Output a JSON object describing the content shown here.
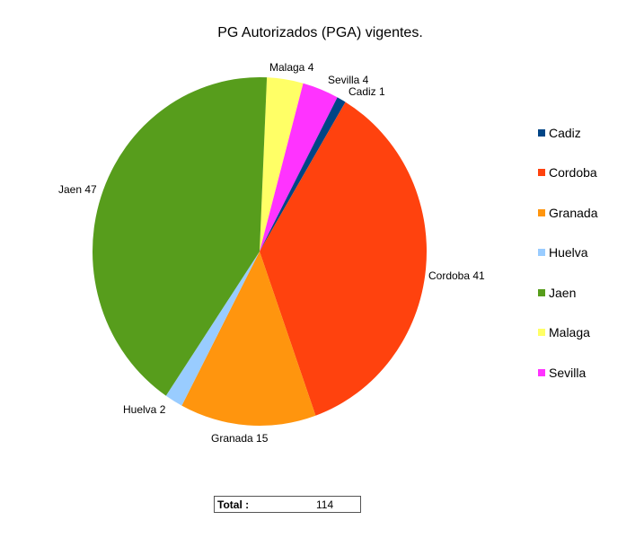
{
  "title": "PG Autorizados (PGA) vigentes.",
  "chart_data": {
    "type": "pie",
    "title": "PG Autorizados (PGA) vigentes.",
    "categories": [
      "Cadiz",
      "Cordoba",
      "Granada",
      "Huelva",
      "Jaen",
      "Malaga",
      "Sevilla"
    ],
    "values": [
      1,
      41,
      15,
      2,
      47,
      4,
      4
    ],
    "colors": [
      "#004586",
      "#ff420e",
      "#ff950e",
      "#99ccff",
      "#579d1c",
      "#ffff66",
      "#ff33ff"
    ],
    "data_labels": [
      "Cadiz 1",
      "Cordoba 41",
      "Granada 15",
      "Huelva 2",
      "Jaen 47",
      "Malaga 4",
      "Sevilla 4"
    ],
    "legend_position": "right",
    "total": 114
  },
  "legend": [
    {
      "label": "Cadiz",
      "color": "#004586"
    },
    {
      "label": "Cordoba",
      "color": "#ff420e"
    },
    {
      "label": "Granada",
      "color": "#ff950e"
    },
    {
      "label": "Huelva",
      "color": "#99ccff"
    },
    {
      "label": "Jaen",
      "color": "#579d1c"
    },
    {
      "label": "Malaga",
      "color": "#ffff66"
    },
    {
      "label": "Sevilla",
      "color": "#ff33ff"
    }
  ],
  "labels": {
    "malaga": "Malaga 4",
    "sevilla": "Sevilla 4",
    "cadiz": "Cadiz 1",
    "cordoba": "Cordoba 41",
    "granada": "Granada 15",
    "huelva": "Huelva 2",
    "jaen": "Jaen 47"
  },
  "total": {
    "label": "Total :",
    "value": "114"
  }
}
